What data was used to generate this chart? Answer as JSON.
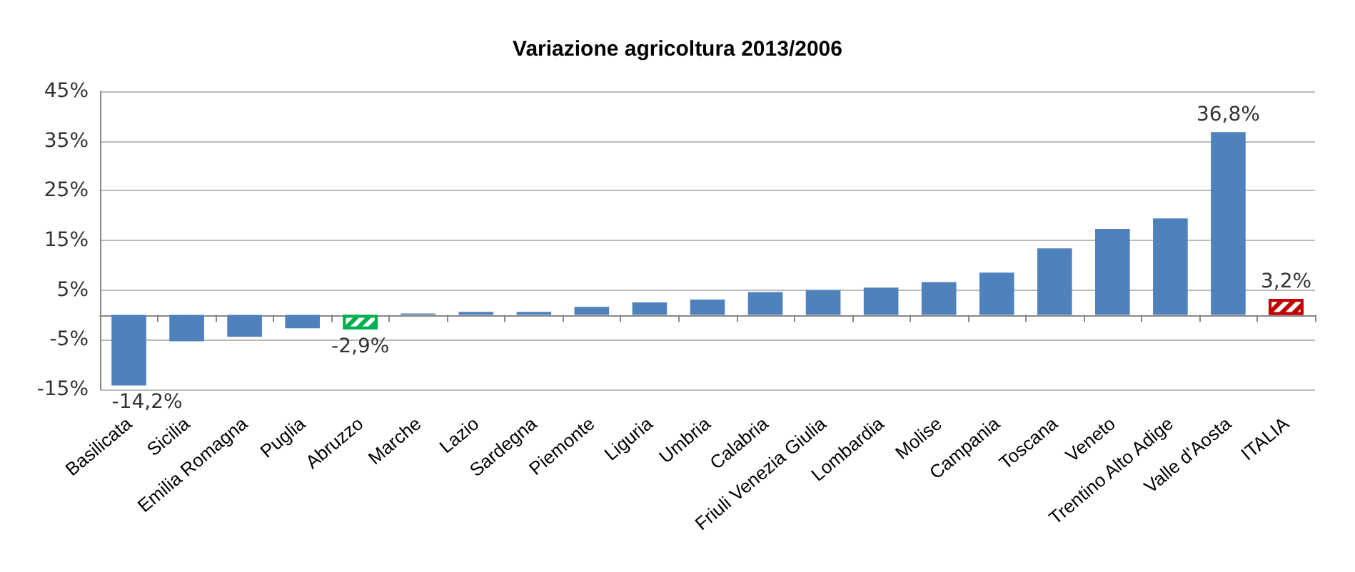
{
  "chart_data": {
    "type": "bar",
    "title": "Variazione agricoltura 2013/2006",
    "categories": [
      "Basilicata",
      "Sicilia",
      "Emilia Romagna",
      "Puglia",
      "Abruzzo",
      "Marche",
      "Lazio",
      "Sardegna",
      "Piemonte",
      "Liguria",
      "Umbria",
      "Calabria",
      "Friuli Venezia Giulia",
      "Lombardia",
      "Molise",
      "Campania",
      "Toscana",
      "Veneto",
      "Trentino Alto Adige",
      "Valle d'Aosta",
      "ITALIA"
    ],
    "values": [
      -14.2,
      -5.3,
      -4.4,
      -2.7,
      -2.9,
      0.3,
      0.6,
      0.6,
      1.6,
      2.5,
      3.1,
      4.6,
      5.0,
      5.5,
      6.6,
      8.5,
      13.4,
      17.3,
      19.4,
      36.8,
      3.2
    ],
    "colors": [
      "#4f81bd",
      "#4f81bd",
      "#4f81bd",
      "#4f81bd",
      "#00b050",
      "#4f81bd",
      "#4f81bd",
      "#4f81bd",
      "#4f81bd",
      "#4f81bd",
      "#4f81bd",
      "#4f81bd",
      "#4f81bd",
      "#4f81bd",
      "#4f81bd",
      "#4f81bd",
      "#4f81bd",
      "#4f81bd",
      "#4f81bd",
      "#4f81bd",
      "#c00000"
    ],
    "value_labels": [
      "-14,2%",
      null,
      null,
      null,
      "-2,9%",
      null,
      null,
      null,
      null,
      null,
      null,
      null,
      null,
      null,
      null,
      null,
      null,
      null,
      null,
      "36,8%",
      "3,2%"
    ],
    "ylim": [
      -15,
      45
    ],
    "yticks": [
      {
        "value": -15,
        "label": "-15%"
      },
      {
        "value": -5,
        "label": "-5%"
      },
      {
        "value": 5,
        "label": "5%"
      },
      {
        "value": 15,
        "label": "15%"
      },
      {
        "value": 25,
        "label": "25%"
      },
      {
        "value": 35,
        "label": "35%"
      },
      {
        "value": 45,
        "label": "45%"
      }
    ],
    "grid": "y"
  }
}
